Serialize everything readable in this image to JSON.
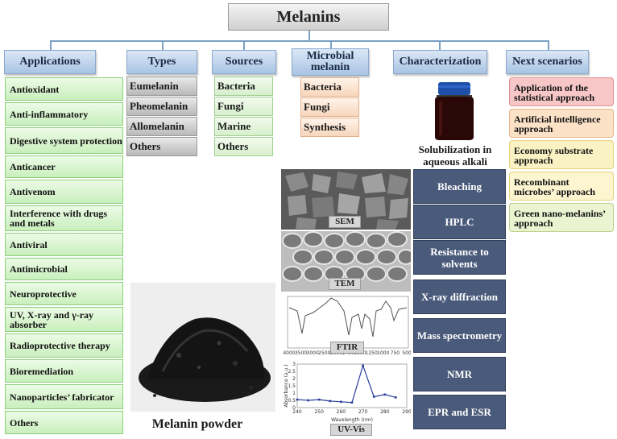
{
  "root": "Melanins",
  "columns": {
    "applications": {
      "title": "Applications",
      "items": [
        "Antioxidant",
        "Anti-inflammatory",
        "Digestive system protection",
        "Anticancer",
        "Antivenom",
        "Interference with drugs and metals",
        "Antiviral",
        "Antimicrobial",
        "Neuroprotective",
        "UV, X-ray and γ-ray absorber",
        "Radioprotective therapy",
        "Bioremediation",
        "Nanoparticles’ fabricator",
        "Others"
      ]
    },
    "types": {
      "title": "Types",
      "items": [
        "Eumelanin",
        "Pheomelanin",
        "Allomelanin",
        "Others"
      ]
    },
    "sources": {
      "title": "Sources",
      "items": [
        "Bacteria",
        "Fungi",
        "Marine",
        "Others"
      ]
    },
    "microbial": {
      "title": "Microbial melanin",
      "items": [
        "Bacteria",
        "Fungi",
        "Synthesis"
      ]
    },
    "characterization": {
      "title": "Characterization",
      "items": [
        "Bleaching",
        "HPLC",
        "Resistance to solvents",
        "X-ray diffraction",
        "Mass spectrometry",
        "NMR",
        "EPR and ESR"
      ]
    },
    "next": {
      "title": "Next scenarios",
      "items": [
        "Application of the statistical approach",
        "Artificial intelligence approach",
        "Economy substrate approach",
        "Recombinant microbes’ approach",
        "Green nano-melanins’ approach"
      ],
      "colors": [
        "#f6c6c6",
        "#fbe0c4",
        "#fbf3c2",
        "#fdf6cf",
        "#eaf3cf"
      ]
    }
  },
  "images": {
    "jar_caption": "Solubilization in aqueous alkali",
    "powder_caption": "Melanin powder",
    "sem_label": "SEM",
    "tem_label": "TEM",
    "ftir_label": "FTIR",
    "uvvis_label": "UV-Vis"
  },
  "uvvis": {
    "ylabel": "Absorbance (a.u.)",
    "xlabel": "Wavelength (nm)",
    "x_ticks": [
      "240",
      "250",
      "260",
      "270",
      "280",
      "290"
    ],
    "y_ticks": [
      "0",
      "0.5",
      "1",
      "1.5",
      "2",
      "2.5",
      "3"
    ],
    "x": [
      240,
      245,
      250,
      255,
      260,
      265,
      270,
      275,
      280,
      285
    ],
    "y": [
      0.55,
      0.5,
      0.55,
      0.45,
      0.4,
      0.35,
      2.9,
      0.75,
      0.9,
      0.7
    ]
  },
  "ftir": {
    "x_ticks": [
      "4000",
      "3500",
      "3000",
      "2500",
      "2000",
      "1750",
      "1500",
      "1250",
      "1000",
      "750",
      "500"
    ]
  }
}
